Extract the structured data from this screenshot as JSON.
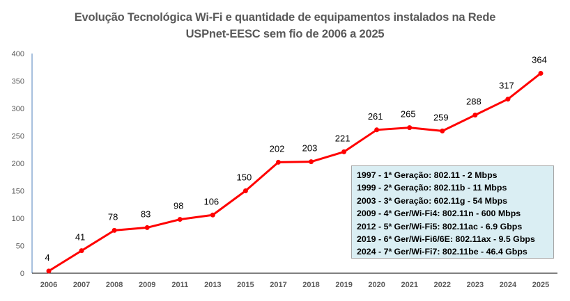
{
  "chart_data": {
    "type": "line",
    "title": "Evolução Tecnológica Wi-Fi e quantidade de equipamentos instalados na Rede",
    "subtitle": "USPnet-EESC sem fio de 2006 a 2025",
    "xlabel": "",
    "ylabel": "",
    "categories": [
      "2006",
      "2007",
      "2008",
      "2009",
      "2011",
      "2013",
      "2015",
      "2017",
      "2018",
      "2019",
      "2020",
      "2021",
      "2022",
      "2023",
      "2024",
      "2025"
    ],
    "series": [
      {
        "name": "Equipamentos instalados",
        "values": [
          4,
          41,
          78,
          83,
          98,
          106,
          150,
          202,
          203,
          221,
          261,
          265,
          259,
          288,
          317,
          364
        ],
        "color": "#ff0000"
      }
    ],
    "ylim": [
      0,
      400
    ],
    "yticks": [
      "0",
      "50",
      "100",
      "150",
      "200",
      "250",
      "300",
      "350",
      "400"
    ],
    "grid": false,
    "annotations": [
      "1997 - 1ª Geração: 802.11 - 2 Mbps",
      "1999 - 2ª Geração: 802.11b - 11 Mbps",
      "2003 - 3ª Geração: 602.11g - 54 Mbps",
      "2009 - 4ª Ger/Wi-Fi4: 802.11n - 600 Mbps",
      "2012 - 5ª Ger/Wi-Fi5: 802.11ac - 6.9 Gbps",
      "2019 - 6ª Ger/Wi-Fi6/6E: 802.11ax - 9.5 Gbps",
      "2024 - 7ª Ger/Wi-Fi7: 802.11be - 46.4 Gbps"
    ],
    "annotation_box_color": "#daeef3",
    "axis_color": "#4f81bd"
  }
}
